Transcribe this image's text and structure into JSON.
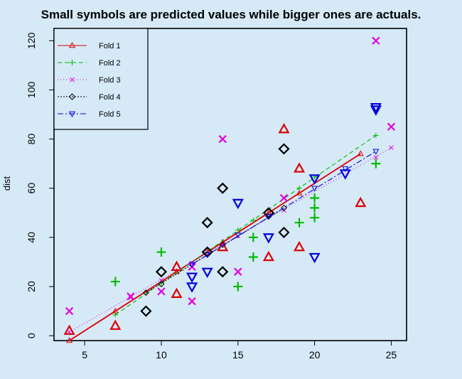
{
  "chart_data": {
    "type": "scatter",
    "title": "Small symbols are predicted values while bigger ones are actuals.",
    "xlabel": "",
    "ylabel": "dist",
    "xlim": [
      3,
      26
    ],
    "ylim": [
      -2,
      125
    ],
    "xticks": [
      5,
      10,
      15,
      20,
      25
    ],
    "yticks": [
      0,
      20,
      40,
      60,
      80,
      100,
      120
    ],
    "legend_position": "top-left",
    "series": [
      {
        "name": "Fold 1",
        "color": "#dd0000",
        "marker": "triangle-up",
        "dash": "",
        "line": [
          [
            4,
            -2
          ],
          [
            23,
            74
          ]
        ],
        "predicted": [
          [
            4,
            -2
          ],
          [
            7,
            10
          ],
          [
            11,
            26
          ],
          [
            13,
            34
          ],
          [
            14,
            38
          ],
          [
            17,
            50
          ],
          [
            19,
            58
          ],
          [
            23,
            74
          ]
        ],
        "actual": [
          [
            4,
            2
          ],
          [
            7,
            4
          ],
          [
            11,
            17
          ],
          [
            11,
            28
          ],
          [
            14,
            36
          ],
          [
            17,
            32
          ],
          [
            18,
            84
          ],
          [
            19,
            36
          ],
          [
            19,
            68
          ],
          [
            23,
            54
          ]
        ]
      },
      {
        "name": "Fold 2",
        "color": "#00bb00",
        "marker": "plus",
        "dash": "6,4",
        "line": [
          [
            7,
            8.5
          ],
          [
            24,
            81.5
          ]
        ],
        "predicted": [
          [
            7,
            8.5
          ],
          [
            10,
            21.5
          ],
          [
            15,
            43
          ],
          [
            16,
            47
          ],
          [
            19,
            60
          ],
          [
            20,
            64.5
          ],
          [
            24,
            81.5
          ]
        ],
        "actual": [
          [
            7,
            22
          ],
          [
            10,
            34
          ],
          [
            15,
            20
          ],
          [
            16,
            32
          ],
          [
            16,
            40
          ],
          [
            19,
            46
          ],
          [
            20,
            48
          ],
          [
            20,
            52
          ],
          [
            20,
            56
          ],
          [
            24,
            70
          ]
        ]
      },
      {
        "name": "Fold 3",
        "color": "#e000e0",
        "marker": "x",
        "dash": "1,3",
        "line": [
          [
            4,
            1.5
          ],
          [
            25,
            76.5
          ]
        ],
        "predicted": [
          [
            4,
            1.5
          ],
          [
            8,
            15.5
          ],
          [
            10,
            22.5
          ],
          [
            12,
            29.5
          ],
          [
            14,
            37
          ],
          [
            15,
            40.5
          ],
          [
            18,
            51
          ],
          [
            24,
            72.5
          ],
          [
            25,
            76.5
          ]
        ],
        "actual": [
          [
            4,
            10
          ],
          [
            8,
            16
          ],
          [
            10,
            18
          ],
          [
            12,
            14
          ],
          [
            12,
            28
          ],
          [
            14,
            80
          ],
          [
            15,
            26
          ],
          [
            18,
            56
          ],
          [
            24,
            120
          ],
          [
            25,
            85
          ]
        ]
      },
      {
        "name": "Fold 4",
        "color": "#000000",
        "marker": "diamond",
        "dash": "2,2",
        "line": [
          [
            9,
            17.5
          ],
          [
            18,
            52
          ]
        ],
        "predicted": [
          [
            9,
            17.5
          ],
          [
            10,
            21
          ],
          [
            13,
            33
          ],
          [
            14,
            37
          ],
          [
            17,
            48.5
          ],
          [
            18,
            52
          ]
        ],
        "actual": [
          [
            9,
            10
          ],
          [
            10,
            26
          ],
          [
            13,
            34
          ],
          [
            13,
            46
          ],
          [
            14,
            26
          ],
          [
            14,
            60
          ],
          [
            17,
            50
          ],
          [
            18,
            42
          ],
          [
            18,
            76
          ]
        ]
      },
      {
        "name": "Fold 5",
        "color": "#0000dd",
        "marker": "triangle-down",
        "dash": "8,3,2,3",
        "line": [
          [
            12,
            29
          ],
          [
            24,
            75
          ]
        ],
        "predicted": [
          [
            12,
            29
          ],
          [
            13,
            33
          ],
          [
            15,
            41
          ],
          [
            17,
            48.5
          ],
          [
            20,
            60
          ],
          [
            22,
            68
          ],
          [
            24,
            75
          ]
        ],
        "actual": [
          [
            12,
            20
          ],
          [
            12,
            24
          ],
          [
            13,
            26
          ],
          [
            15,
            54
          ],
          [
            17,
            40
          ],
          [
            20,
            32
          ],
          [
            20,
            64
          ],
          [
            22,
            66
          ],
          [
            24,
            92
          ],
          [
            24,
            93
          ]
        ]
      }
    ]
  }
}
